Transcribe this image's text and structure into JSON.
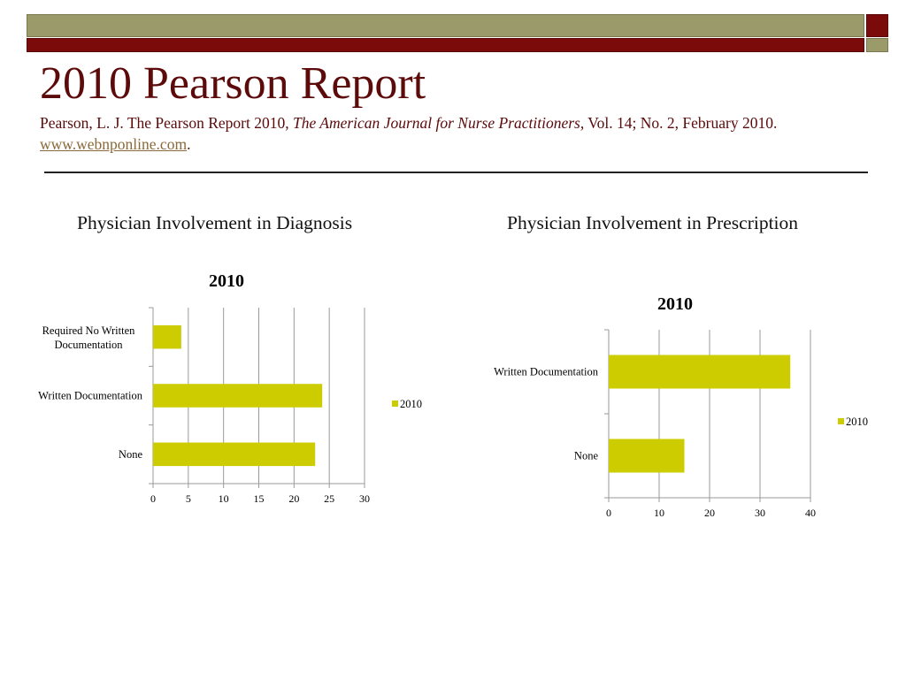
{
  "slide": {
    "title": "2010 Pearson Report",
    "citation_part1": "Pearson, L. J. The Pearson Report 2010, ",
    "citation_italic": "The American Journal for Nurse Practitioners,",
    "citation_part2": " Vol. 14; No. 2, February 2010. ",
    "citation_link": "www.webnponline.com",
    "citation_end": "."
  },
  "colors": {
    "accent_red": "#7b0a0a",
    "accent_olive": "#9b9a6b",
    "bar_fill": "#cccc00",
    "grid": "#999999"
  },
  "left_heading": "Physician  Involvement in Diagnosis",
  "right_heading": "Physician  Involvement in Prescription",
  "chart_data": [
    {
      "type": "bar",
      "orientation": "horizontal",
      "title": "2010",
      "categories": [
        "Required No Written Documentation",
        "Written Documentation",
        "None"
      ],
      "series": [
        {
          "name": "2010",
          "values": [
            4,
            24,
            23
          ]
        }
      ],
      "xlim": [
        0,
        30
      ],
      "ticks": [
        "0",
        "5",
        "10",
        "15",
        "20",
        "25",
        "30"
      ],
      "grid": true,
      "legend": "right"
    },
    {
      "type": "bar",
      "orientation": "horizontal",
      "title": "2010",
      "categories": [
        "Written Documentation",
        "None"
      ],
      "series": [
        {
          "name": "2010",
          "values": [
            36,
            15
          ]
        }
      ],
      "xlim": [
        0,
        40
      ],
      "ticks": [
        "0",
        "10",
        "20",
        "30",
        "40"
      ],
      "grid": true,
      "legend": "right"
    }
  ]
}
